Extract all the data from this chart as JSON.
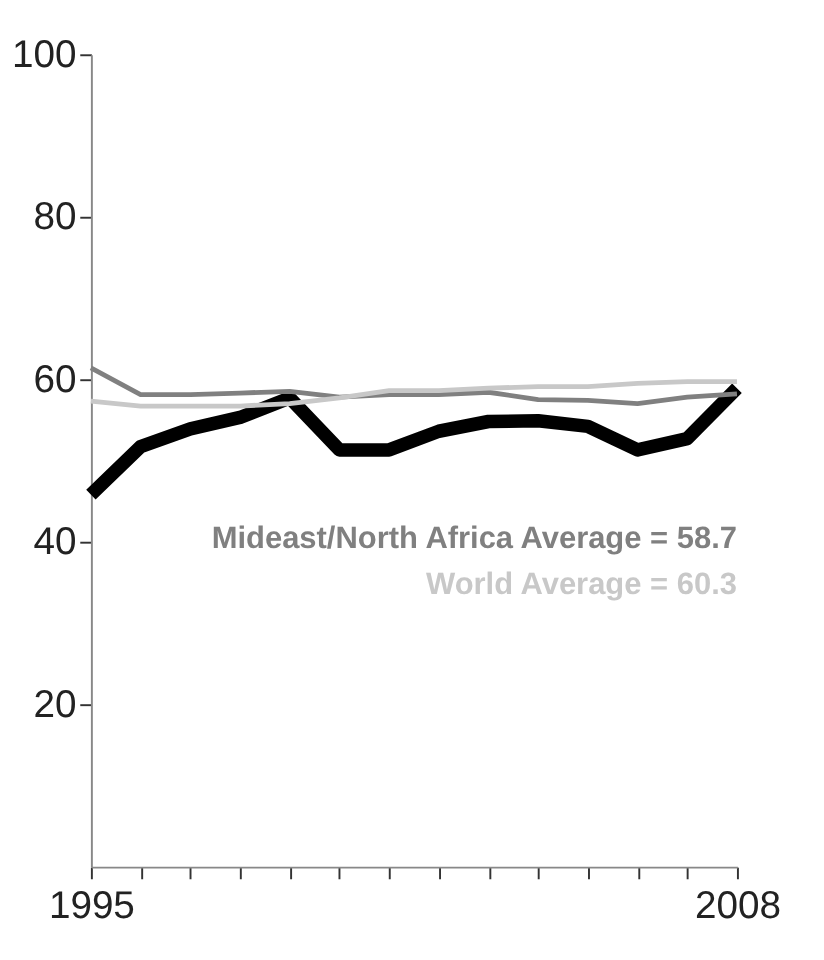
{
  "chart_data": {
    "type": "line",
    "x": [
      1995,
      1996,
      1997,
      1998,
      1999,
      2000,
      2001,
      2002,
      2003,
      2004,
      2005,
      2006,
      2007,
      2008
    ],
    "series": [
      {
        "color": "#000000",
        "values": [
          45.8,
          51.7,
          53.9,
          55.3,
          57.7,
          51.3,
          51.3,
          53.6,
          54.8,
          54.9,
          54.2,
          51.3,
          52.7,
          58.9
        ]
      },
      {
        "name": "Mideast/North Africa Average = 58.7",
        "color": "#808080",
        "values": [
          61.4,
          58.1,
          58.1,
          58.3,
          58.5,
          57.8,
          58.1,
          58.1,
          58.4,
          57.5,
          57.4,
          57.0,
          57.8,
          58.2
        ]
      },
      {
        "name": "World Average = 60.3",
        "color": "#c8c8c8",
        "values": [
          57.3,
          56.7,
          56.7,
          56.7,
          57.0,
          57.7,
          58.6,
          58.6,
          58.9,
          59.1,
          59.1,
          59.5,
          59.7,
          59.7
        ]
      }
    ],
    "xlim": [
      1995,
      2008
    ],
    "xticks": [
      1995,
      {
        "value": 1996,
        "label": null
      },
      {
        "value": 1997,
        "label": null
      },
      {
        "value": 1998,
        "label": null
      },
      {
        "value": 1999,
        "label": null
      },
      {
        "value": 2000,
        "label": null
      },
      {
        "value": 2001,
        "label": null
      },
      {
        "value": 2002,
        "label": null
      },
      {
        "value": 2003,
        "label": null
      },
      {
        "value": 2004,
        "label": null
      },
      {
        "value": 2005,
        "label": null
      },
      {
        "value": 2006,
        "label": null
      },
      {
        "value": 2007,
        "label": null
      },
      2008
    ],
    "ylim": [
      0,
      100
    ],
    "yticks": [
      20,
      40,
      60,
      80,
      100
    ],
    "grid": false,
    "marker": "none",
    "line_style": "solid"
  }
}
